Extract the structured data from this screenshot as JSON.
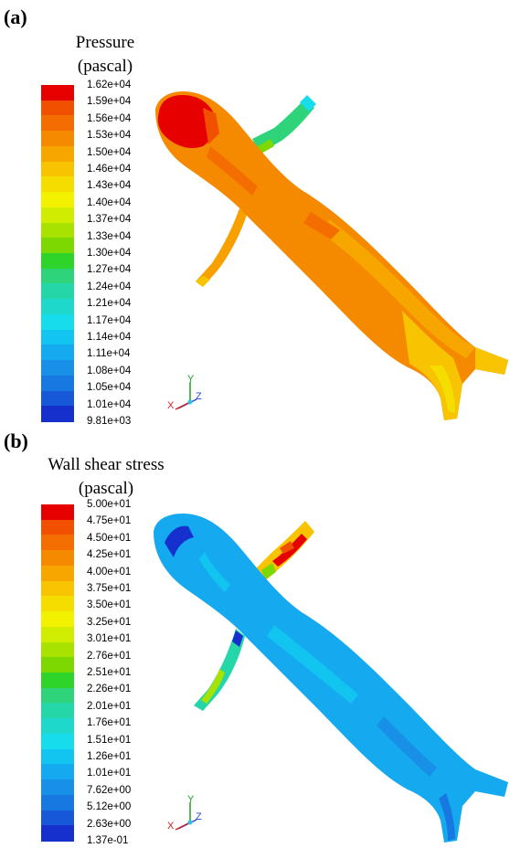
{
  "panels": [
    {
      "label": "(a)",
      "title_line1": "Pressure",
      "title_line2": "(pascal)",
      "colors": [
        "#e60000",
        "#f05000",
        "#f36d00",
        "#f58a00",
        "#f7a600",
        "#f8c300",
        "#f5dd00",
        "#f2f200",
        "#d0ec00",
        "#a8e200",
        "#7cd800",
        "#2fd42a",
        "#2fd47a",
        "#24d6a8",
        "#1ed8cc",
        "#16dcec",
        "#12c4f0",
        "#15a9ef",
        "#1890e8",
        "#1878e2",
        "#1758d8",
        "#1530cc"
      ],
      "ticks": [
        "1.62e+04",
        "1.59e+04",
        "1.56e+04",
        "1.53e+04",
        "1.50e+04",
        "1.46e+04",
        "1.43e+04",
        "1.40e+04",
        "1.37e+04",
        "1.33e+04",
        "1.30e+04",
        "1.27e+04",
        "1.24e+04",
        "1.21e+04",
        "1.17e+04",
        "1.14e+04",
        "1.11e+04",
        "1.08e+04",
        "1.05e+04",
        "1.01e+04",
        "9.81e+03"
      ]
    },
    {
      "label": "(b)",
      "title_line1": "Wall shear stress",
      "title_line2": "(pascal)",
      "colors": [
        "#e60000",
        "#f05000",
        "#f36d00",
        "#f58a00",
        "#f7a600",
        "#f8c300",
        "#f5dd00",
        "#f2f200",
        "#d0ec00",
        "#a8e200",
        "#7cd800",
        "#2fd42a",
        "#2fd47a",
        "#24d6a8",
        "#1ed8cc",
        "#16dcec",
        "#12c4f0",
        "#15a9ef",
        "#1890e8",
        "#1878e2",
        "#1758d8",
        "#1530cc"
      ],
      "ticks": [
        "5.00e+01",
        "4.75e+01",
        "4.50e+01",
        "4.25e+01",
        "4.00e+01",
        "3.75e+01",
        "3.50e+01",
        "3.25e+01",
        "3.01e+01",
        "2.76e+01",
        "2.51e+01",
        "2.26e+01",
        "2.01e+01",
        "1.76e+01",
        "1.51e+01",
        "1.26e+01",
        "1.01e+01",
        "7.62e+00",
        "5.12e+00",
        "2.63e+00",
        "1.37e-01"
      ]
    }
  ],
  "triad": {
    "y": "Y",
    "z": "Z",
    "x": "X"
  }
}
